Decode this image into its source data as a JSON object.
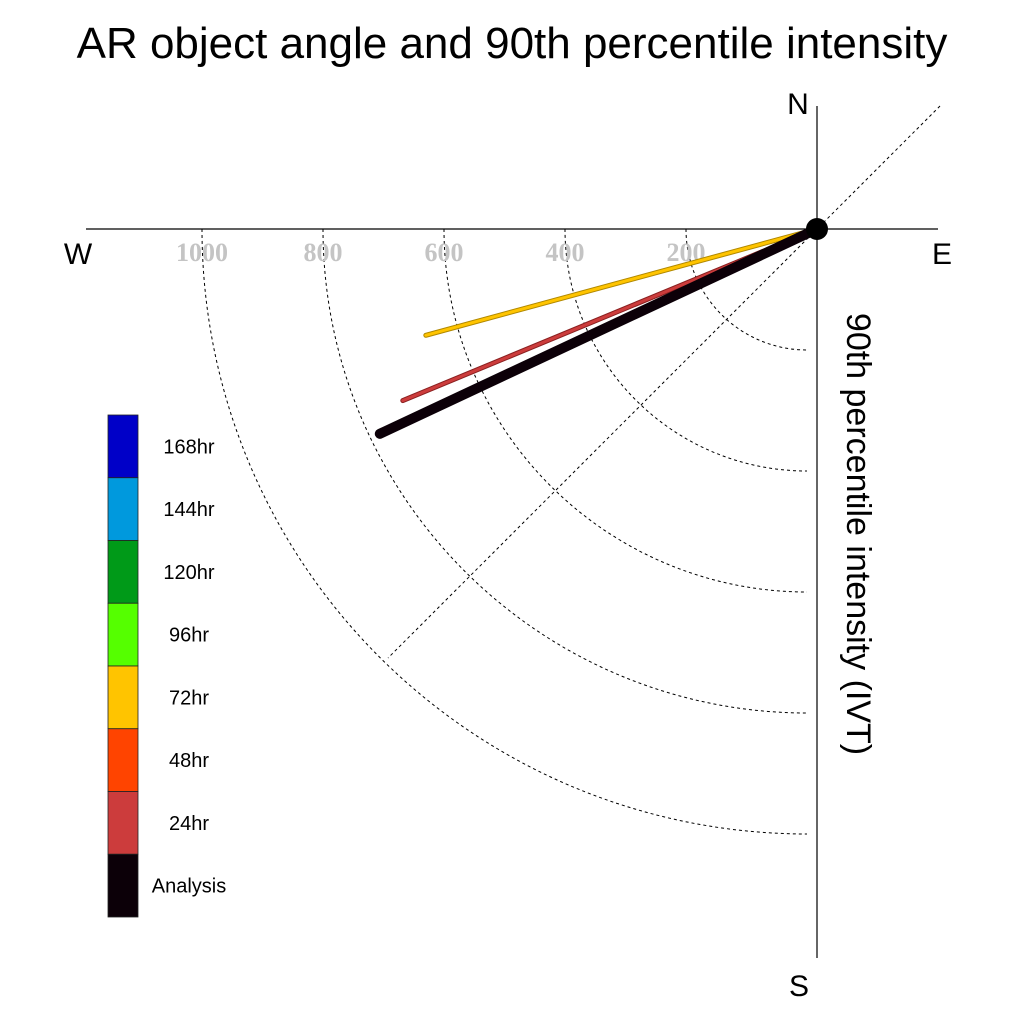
{
  "chart_data": {
    "type": "polar-vector",
    "title": "AR object angle and 90th percentile intensity",
    "ylabel": "90th percentile intensity (IVT)",
    "compass": {
      "north": "N",
      "south": "S",
      "east": "E",
      "west": "W"
    },
    "radial_ticks": [
      200,
      400,
      600,
      800,
      1000
    ],
    "radial_tick_labels": [
      "200",
      "400",
      "600",
      "800",
      "1000"
    ],
    "rmax": 1200,
    "grid": true,
    "legend": {
      "placement": "bottom-left",
      "items": [
        {
          "label": "168hr",
          "color": "#0000c8"
        },
        {
          "label": "144hr",
          "color": "#0099dd"
        },
        {
          "label": "120hr",
          "color": "#009a18"
        },
        {
          "label": "96hr",
          "color": "#55ff00"
        },
        {
          "label": "72hr",
          "color": "#ffc400"
        },
        {
          "label": "48hr",
          "color": "#ff4400"
        },
        {
          "label": "24hr",
          "color": "#cc3c3c"
        },
        {
          "label": "Analysis",
          "color": "#0c0008"
        }
      ]
    },
    "series": [
      {
        "name": "72hr",
        "color": "#ffc400",
        "outline": "#b08800",
        "angle_deg": 254.8,
        "intensity": 670
      },
      {
        "name": "24hr",
        "color": "#cc3c3c",
        "outline": "#8a2020",
        "angle_deg": 247.5,
        "intensity": 741
      },
      {
        "name": "Analysis",
        "color": "#0c0008",
        "outline": "#0c0008",
        "angle_deg": 244.9,
        "intensity": 798
      }
    ]
  }
}
